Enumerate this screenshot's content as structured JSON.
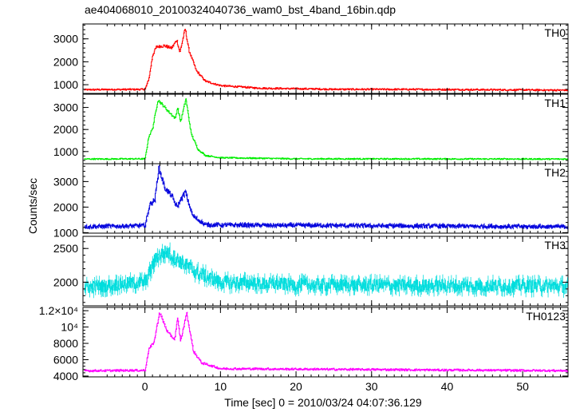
{
  "title": "ae404068010_20100324040736_wam0_bst_4band_16bin.qdp",
  "xlabel": "Time [sec] 0 = 2010/03/24 04:07:36.129",
  "ylabel": "Counts/sec",
  "x_ticks": [
    {
      "value": 0,
      "label": "0"
    },
    {
      "value": 10,
      "label": "10"
    },
    {
      "value": 20,
      "label": "20"
    },
    {
      "value": 30,
      "label": "30"
    },
    {
      "value": 40,
      "label": "40"
    },
    {
      "value": 50,
      "label": "50"
    }
  ],
  "chart_data": [
    {
      "type": "line",
      "name": "TH0",
      "color": "#ff0000",
      "xlim": [
        -8.2,
        56.0
      ],
      "ylim": [
        620,
        3650
      ],
      "y_ticks": [
        {
          "value": 1000,
          "label": "1000"
        },
        {
          "value": 2000,
          "label": "2000"
        },
        {
          "value": 3000,
          "label": "3000"
        }
      ],
      "baseline": 780,
      "noise": 35,
      "profile": [
        [
          -8,
          780
        ],
        [
          0,
          800
        ],
        [
          0.5,
          1250
        ],
        [
          1,
          2300
        ],
        [
          1.5,
          2650
        ],
        [
          2.5,
          2700
        ],
        [
          3.5,
          2600
        ],
        [
          4.2,
          2950
        ],
        [
          4.6,
          2400
        ],
        [
          5.3,
          3450
        ],
        [
          5.8,
          2500
        ],
        [
          6.8,
          1600
        ],
        [
          8,
          1150
        ],
        [
          10,
          960
        ],
        [
          15,
          850
        ],
        [
          25,
          800
        ],
        [
          40,
          790
        ],
        [
          56,
          760
        ]
      ]
    },
    {
      "type": "line",
      "name": "TH1",
      "color": "#00ee00",
      "xlim": [
        -8.2,
        56.0
      ],
      "ylim": [
        450,
        3600
      ],
      "y_ticks": [
        {
          "value": 1000,
          "label": "1000"
        },
        {
          "value": 2000,
          "label": "2000"
        },
        {
          "value": 3000,
          "label": "3000"
        }
      ],
      "baseline": 660,
      "noise": 30,
      "profile": [
        [
          -8,
          660
        ],
        [
          0,
          670
        ],
        [
          0.5,
          1700
        ],
        [
          1,
          2050
        ],
        [
          1.7,
          3350
        ],
        [
          3,
          2850
        ],
        [
          4,
          2500
        ],
        [
          4.3,
          3000
        ],
        [
          4.7,
          2350
        ],
        [
          5.4,
          3400
        ],
        [
          6.1,
          1800
        ],
        [
          7,
          1100
        ],
        [
          8,
          820
        ],
        [
          10,
          720
        ],
        [
          20,
          670
        ],
        [
          56,
          660
        ]
      ]
    },
    {
      "type": "line",
      "name": "TH2",
      "color": "#0000dd",
      "xlim": [
        -8.2,
        56.0
      ],
      "ylim": [
        980,
        3700
      ],
      "y_ticks": [
        {
          "value": 1000,
          "label": "1000"
        },
        {
          "value": 2000,
          "label": "2000"
        },
        {
          "value": 3000,
          "label": "3000"
        }
      ],
      "baseline": 1230,
      "noise": 70,
      "profile": [
        [
          -8,
          1230
        ],
        [
          0,
          1280
        ],
        [
          0.6,
          2100
        ],
        [
          1.3,
          2300
        ],
        [
          1.8,
          3550
        ],
        [
          2.6,
          2750
        ],
        [
          3.5,
          2450
        ],
        [
          4.2,
          2000
        ],
        [
          5.3,
          2600
        ],
        [
          6.3,
          1650
        ],
        [
          8,
          1300
        ],
        [
          56,
          1230
        ]
      ]
    },
    {
      "type": "line",
      "name": "TH3",
      "color": "#00dddd",
      "xlim": [
        -8.2,
        56.0
      ],
      "ylim": [
        1650,
        2680
      ],
      "y_ticks": [
        {
          "value": 2000,
          "label": "2000"
        },
        {
          "value": 2500,
          "label": "2500"
        }
      ],
      "baseline": 1920,
      "noise": 95,
      "profile": [
        [
          -8,
          1920
        ],
        [
          0,
          2000
        ],
        [
          1.5,
          2380
        ],
        [
          2.8,
          2450
        ],
        [
          4.5,
          2320
        ],
        [
          7,
          2130
        ],
        [
          10,
          2000
        ],
        [
          20,
          1960
        ],
        [
          56,
          1940
        ]
      ]
    },
    {
      "type": "line",
      "name": "TH0123",
      "color": "#ff00ff",
      "xlim": [
        -8.2,
        56.0
      ],
      "ylim": [
        3900,
        12400
      ],
      "y_ticks": [
        {
          "value": 4000,
          "label": "4000"
        },
        {
          "value": 6000,
          "label": "6000"
        },
        {
          "value": 8000,
          "label": "8000"
        },
        {
          "value": 10000,
          "label": "10⁴"
        },
        {
          "value": 12000,
          "label": "1.2×10⁴"
        }
      ],
      "baseline": 4650,
      "noise": 120,
      "profile": [
        [
          -8,
          4650
        ],
        [
          0,
          4700
        ],
        [
          0.5,
          7300
        ],
        [
          1.2,
          8200
        ],
        [
          1.9,
          11800
        ],
        [
          3,
          9300
        ],
        [
          3.9,
          8500
        ],
        [
          4.3,
          11000
        ],
        [
          4.7,
          8300
        ],
        [
          5.5,
          11700
        ],
        [
          6.4,
          7000
        ],
        [
          7.5,
          5600
        ],
        [
          10,
          4900
        ],
        [
          56,
          4650
        ]
      ]
    }
  ]
}
